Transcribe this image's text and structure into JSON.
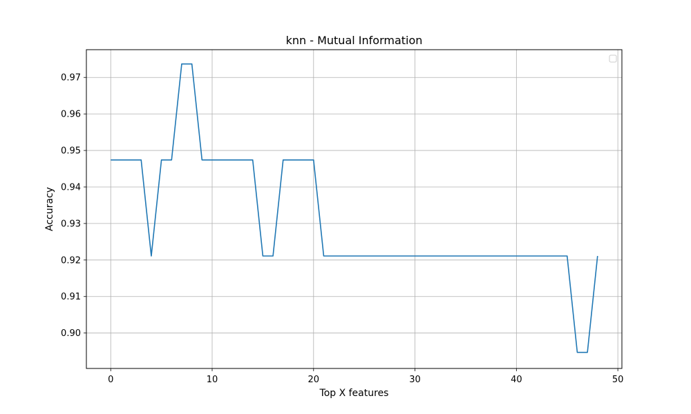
{
  "chart_data": {
    "type": "line",
    "title": "knn - Mutual Information",
    "xlabel": "Top X features",
    "ylabel": "Accuracy",
    "xlim": [
      -2.4,
      50.4
    ],
    "ylim": [
      0.8903,
      0.9776
    ],
    "xticks": [
      0,
      10,
      20,
      30,
      40,
      50
    ],
    "yticks": [
      0.9,
      0.91,
      0.92,
      0.93,
      0.94,
      0.95,
      0.96,
      0.97
    ],
    "ytick_labels": [
      "0.90",
      "0.91",
      "0.92",
      "0.93",
      "0.94",
      "0.95",
      "0.96",
      "0.97"
    ],
    "grid": true,
    "legend": {
      "location": "upper right",
      "entries": []
    },
    "series": [
      {
        "color": "#1f77b4",
        "x": [
          0,
          1,
          2,
          3,
          4,
          5,
          6,
          7,
          8,
          9,
          10,
          11,
          12,
          13,
          14,
          15,
          16,
          17,
          18,
          19,
          20,
          21,
          22,
          23,
          24,
          25,
          26,
          27,
          28,
          29,
          30,
          31,
          32,
          33,
          34,
          35,
          36,
          37,
          38,
          39,
          40,
          41,
          42,
          43,
          44,
          45,
          46,
          47,
          48
        ],
        "values": [
          0.9474,
          0.9474,
          0.9474,
          0.9474,
          0.9211,
          0.9474,
          0.9474,
          0.9737,
          0.9737,
          0.9474,
          0.9474,
          0.9474,
          0.9474,
          0.9474,
          0.9474,
          0.9211,
          0.9211,
          0.9474,
          0.9474,
          0.9474,
          0.9474,
          0.9211,
          0.9211,
          0.9211,
          0.9211,
          0.9211,
          0.9211,
          0.9211,
          0.9211,
          0.9211,
          0.9211,
          0.9211,
          0.9211,
          0.9211,
          0.9211,
          0.9211,
          0.9211,
          0.9211,
          0.9211,
          0.9211,
          0.9211,
          0.9211,
          0.9211,
          0.9211,
          0.9211,
          0.9211,
          0.8947,
          0.8947,
          0.9211
        ]
      }
    ]
  }
}
